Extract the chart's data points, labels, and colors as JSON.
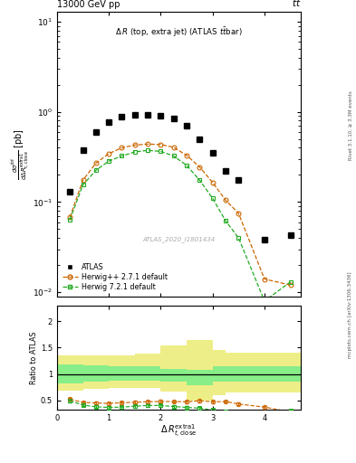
{
  "title_top": "13000 GeV pp",
  "title_top_right": "t$\\bar{t}$",
  "annotation": "Δ R (top, extra jet) (ATLAS ttbar)",
  "watermark": "ATLAS_2020_I1801434",
  "right_label_top": "Rivet 3.1.10, ≥ 3.3M events",
  "right_label_bottom": "mcplots.cern.ch [arXiv:1306.3436]",
  "ylabel_main": "dσ^{tot}/dΔ R_{t,close}^{extra1} [pb]",
  "ylabel_ratio": "Ratio to ATLAS",
  "xlabel": "Δ R_{t,close}^{extra1}",
  "atlas_x": [
    0.25,
    0.5,
    0.75,
    1.0,
    1.25,
    1.5,
    1.75,
    2.0,
    2.25,
    2.5,
    2.75,
    3.0,
    3.25,
    3.5,
    4.0,
    4.5
  ],
  "atlas_y": [
    0.13,
    0.38,
    0.6,
    0.78,
    0.88,
    0.93,
    0.93,
    0.91,
    0.85,
    0.7,
    0.5,
    0.35,
    0.22,
    0.175,
    0.038,
    0.043
  ],
  "herwig_pp_x": [
    0.25,
    0.5,
    0.75,
    1.0,
    1.25,
    1.5,
    1.75,
    2.0,
    2.25,
    2.5,
    2.75,
    3.0,
    3.25,
    3.5,
    4.0,
    4.5
  ],
  "herwig_pp_y": [
    0.068,
    0.175,
    0.27,
    0.345,
    0.4,
    0.43,
    0.44,
    0.435,
    0.405,
    0.33,
    0.245,
    0.165,
    0.105,
    0.075,
    0.014,
    0.012
  ],
  "herwig7_x": [
    0.25,
    0.5,
    0.75,
    1.0,
    1.25,
    1.5,
    1.75,
    2.0,
    2.25,
    2.5,
    2.75,
    3.0,
    3.25,
    3.5,
    4.0,
    4.5
  ],
  "herwig7_y": [
    0.064,
    0.155,
    0.225,
    0.285,
    0.325,
    0.36,
    0.375,
    0.365,
    0.325,
    0.255,
    0.175,
    0.11,
    0.062,
    0.04,
    0.008,
    0.013
  ],
  "ratio_herwig_pp": [
    0.52,
    0.46,
    0.45,
    0.44,
    0.455,
    0.462,
    0.473,
    0.478,
    0.476,
    0.471,
    0.49,
    0.471,
    0.477,
    0.43,
    0.37,
    0.28
  ],
  "ratio_herwig7": [
    0.49,
    0.41,
    0.375,
    0.365,
    0.37,
    0.387,
    0.403,
    0.401,
    0.382,
    0.364,
    0.35,
    0.314,
    0.282,
    0.229,
    0.21,
    0.3
  ],
  "band_edges": [
    0.0,
    0.5,
    1.0,
    1.5,
    2.0,
    2.5,
    3.0,
    3.25,
    4.7
  ],
  "band_green_lo": [
    0.82,
    0.85,
    0.87,
    0.88,
    0.85,
    0.78,
    0.85,
    0.85,
    0.85
  ],
  "band_green_hi": [
    1.18,
    1.17,
    1.15,
    1.15,
    1.1,
    1.08,
    1.15,
    1.15,
    1.15
  ],
  "band_yellow_lo": [
    0.68,
    0.72,
    0.73,
    0.73,
    0.67,
    0.5,
    0.6,
    0.65,
    0.65
  ],
  "band_yellow_hi": [
    1.35,
    1.35,
    1.35,
    1.38,
    1.55,
    1.65,
    1.45,
    1.4,
    1.4
  ],
  "color_atlas": "#000000",
  "color_herwig_pp": "#cc6600",
  "color_herwig7": "#22aa22",
  "color_green_band": "#88ee88",
  "color_yellow_band": "#eeee88",
  "ylim_main": [
    0.009,
    13.0
  ],
  "ylim_ratio": [
    0.32,
    2.3
  ],
  "xlim": [
    0.0,
    4.7
  ]
}
